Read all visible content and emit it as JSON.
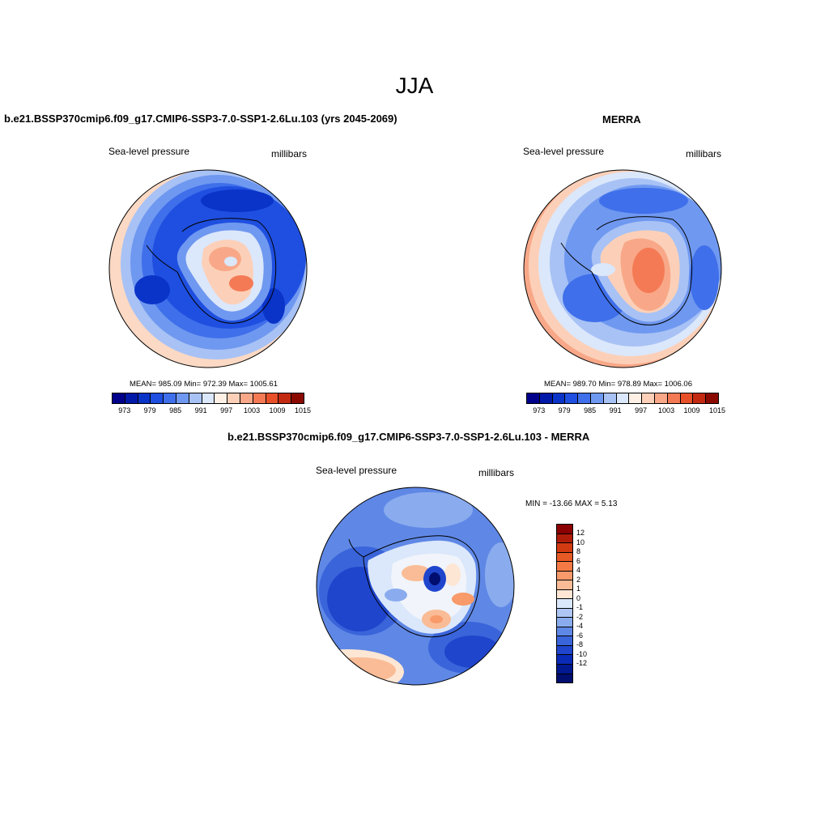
{
  "main_title": "JJA",
  "panels": [
    {
      "title": "b.e21.BSSP370cmip6.f09_g17.CMIP6-SSP3-7.0-SSP1-2.6Lu.103 (yrs 2045-2069)",
      "left_label": "Sea-level pressure",
      "right_label": "millibars",
      "stats": "MEAN= 985.09  Min= 972.39  Max= 1005.61"
    },
    {
      "title": "MERRA",
      "left_label": "Sea-level pressure",
      "right_label": "millibars",
      "stats": "MEAN= 989.70  Min= 978.89  Max= 1006.06"
    },
    {
      "title": "b.e21.BSSP370cmip6.f09_g17.CMIP6-SSP3-7.0-SSP1-2.6Lu.103 - MERRA",
      "left_label": "Sea-level pressure",
      "right_label": "millibars",
      "stats": "MIN = -13.66 MAX =   5.13"
    }
  ],
  "colorbar_abs": {
    "colors": [
      "#00008b",
      "#0019a8",
      "#0a33c8",
      "#1f4fe0",
      "#3f6fea",
      "#6f98f0",
      "#a8c2f5",
      "#dbe7fb",
      "#fff0e6",
      "#fcd0b8",
      "#f8a888",
      "#f47a55",
      "#e8502a",
      "#c42a12",
      "#8b0a00"
    ],
    "labels": [
      "973",
      "979",
      "985",
      "991",
      "997",
      "1003",
      "1009",
      "1015"
    ]
  },
  "colorbar_diff": {
    "colors": [
      "#8b0000",
      "#b01c0a",
      "#d23a12",
      "#e85a25",
      "#f47a45",
      "#f89a6a",
      "#fabc96",
      "#fde6d4",
      "#dbe8fb",
      "#aec6f4",
      "#8aacee",
      "#5f88e6",
      "#3a64da",
      "#1f45cc",
      "#0a2ab8",
      "#001890",
      "#000e70"
    ],
    "labels": [
      "12",
      "10",
      "8",
      "6",
      "4",
      "2",
      "1",
      "0",
      "-1",
      "-2",
      "-4",
      "-6",
      "-8",
      "-10",
      "-12"
    ]
  }
}
